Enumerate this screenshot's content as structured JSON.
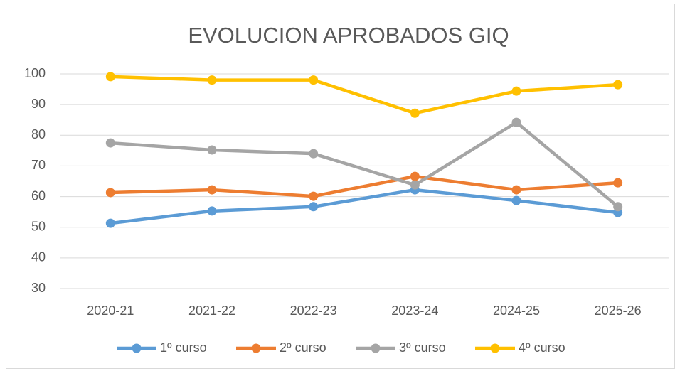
{
  "chart_data": {
    "type": "line",
    "title": "EVOLUCION APROBADOS GIQ",
    "categories": [
      "2020-21",
      "2021-22",
      "2022-23",
      "2023-24",
      "2024-25",
      "2025-26"
    ],
    "series": [
      {
        "name": "1º curso",
        "color": "#5b9bd5",
        "values": [
          51.3,
          55.3,
          56.7,
          62.2,
          58.7,
          54.8
        ]
      },
      {
        "name": "2º curso",
        "color": "#ed7d31",
        "values": [
          61.3,
          62.2,
          60.1,
          66.6,
          62.2,
          64.5
        ]
      },
      {
        "name": "3º curso",
        "color": "#a5a5a5",
        "values": [
          77.5,
          75.2,
          74.0,
          63.8,
          84.2,
          56.7
        ]
      },
      {
        "name": "4º curso",
        "color": "#ffc000",
        "values": [
          99.1,
          98.0,
          98.0,
          87.2,
          94.4,
          96.5
        ]
      }
    ],
    "ylim": [
      30,
      100
    ],
    "yticks": [
      30,
      40,
      50,
      60,
      70,
      80,
      90,
      100
    ],
    "grid": true,
    "legend": "bottom"
  }
}
